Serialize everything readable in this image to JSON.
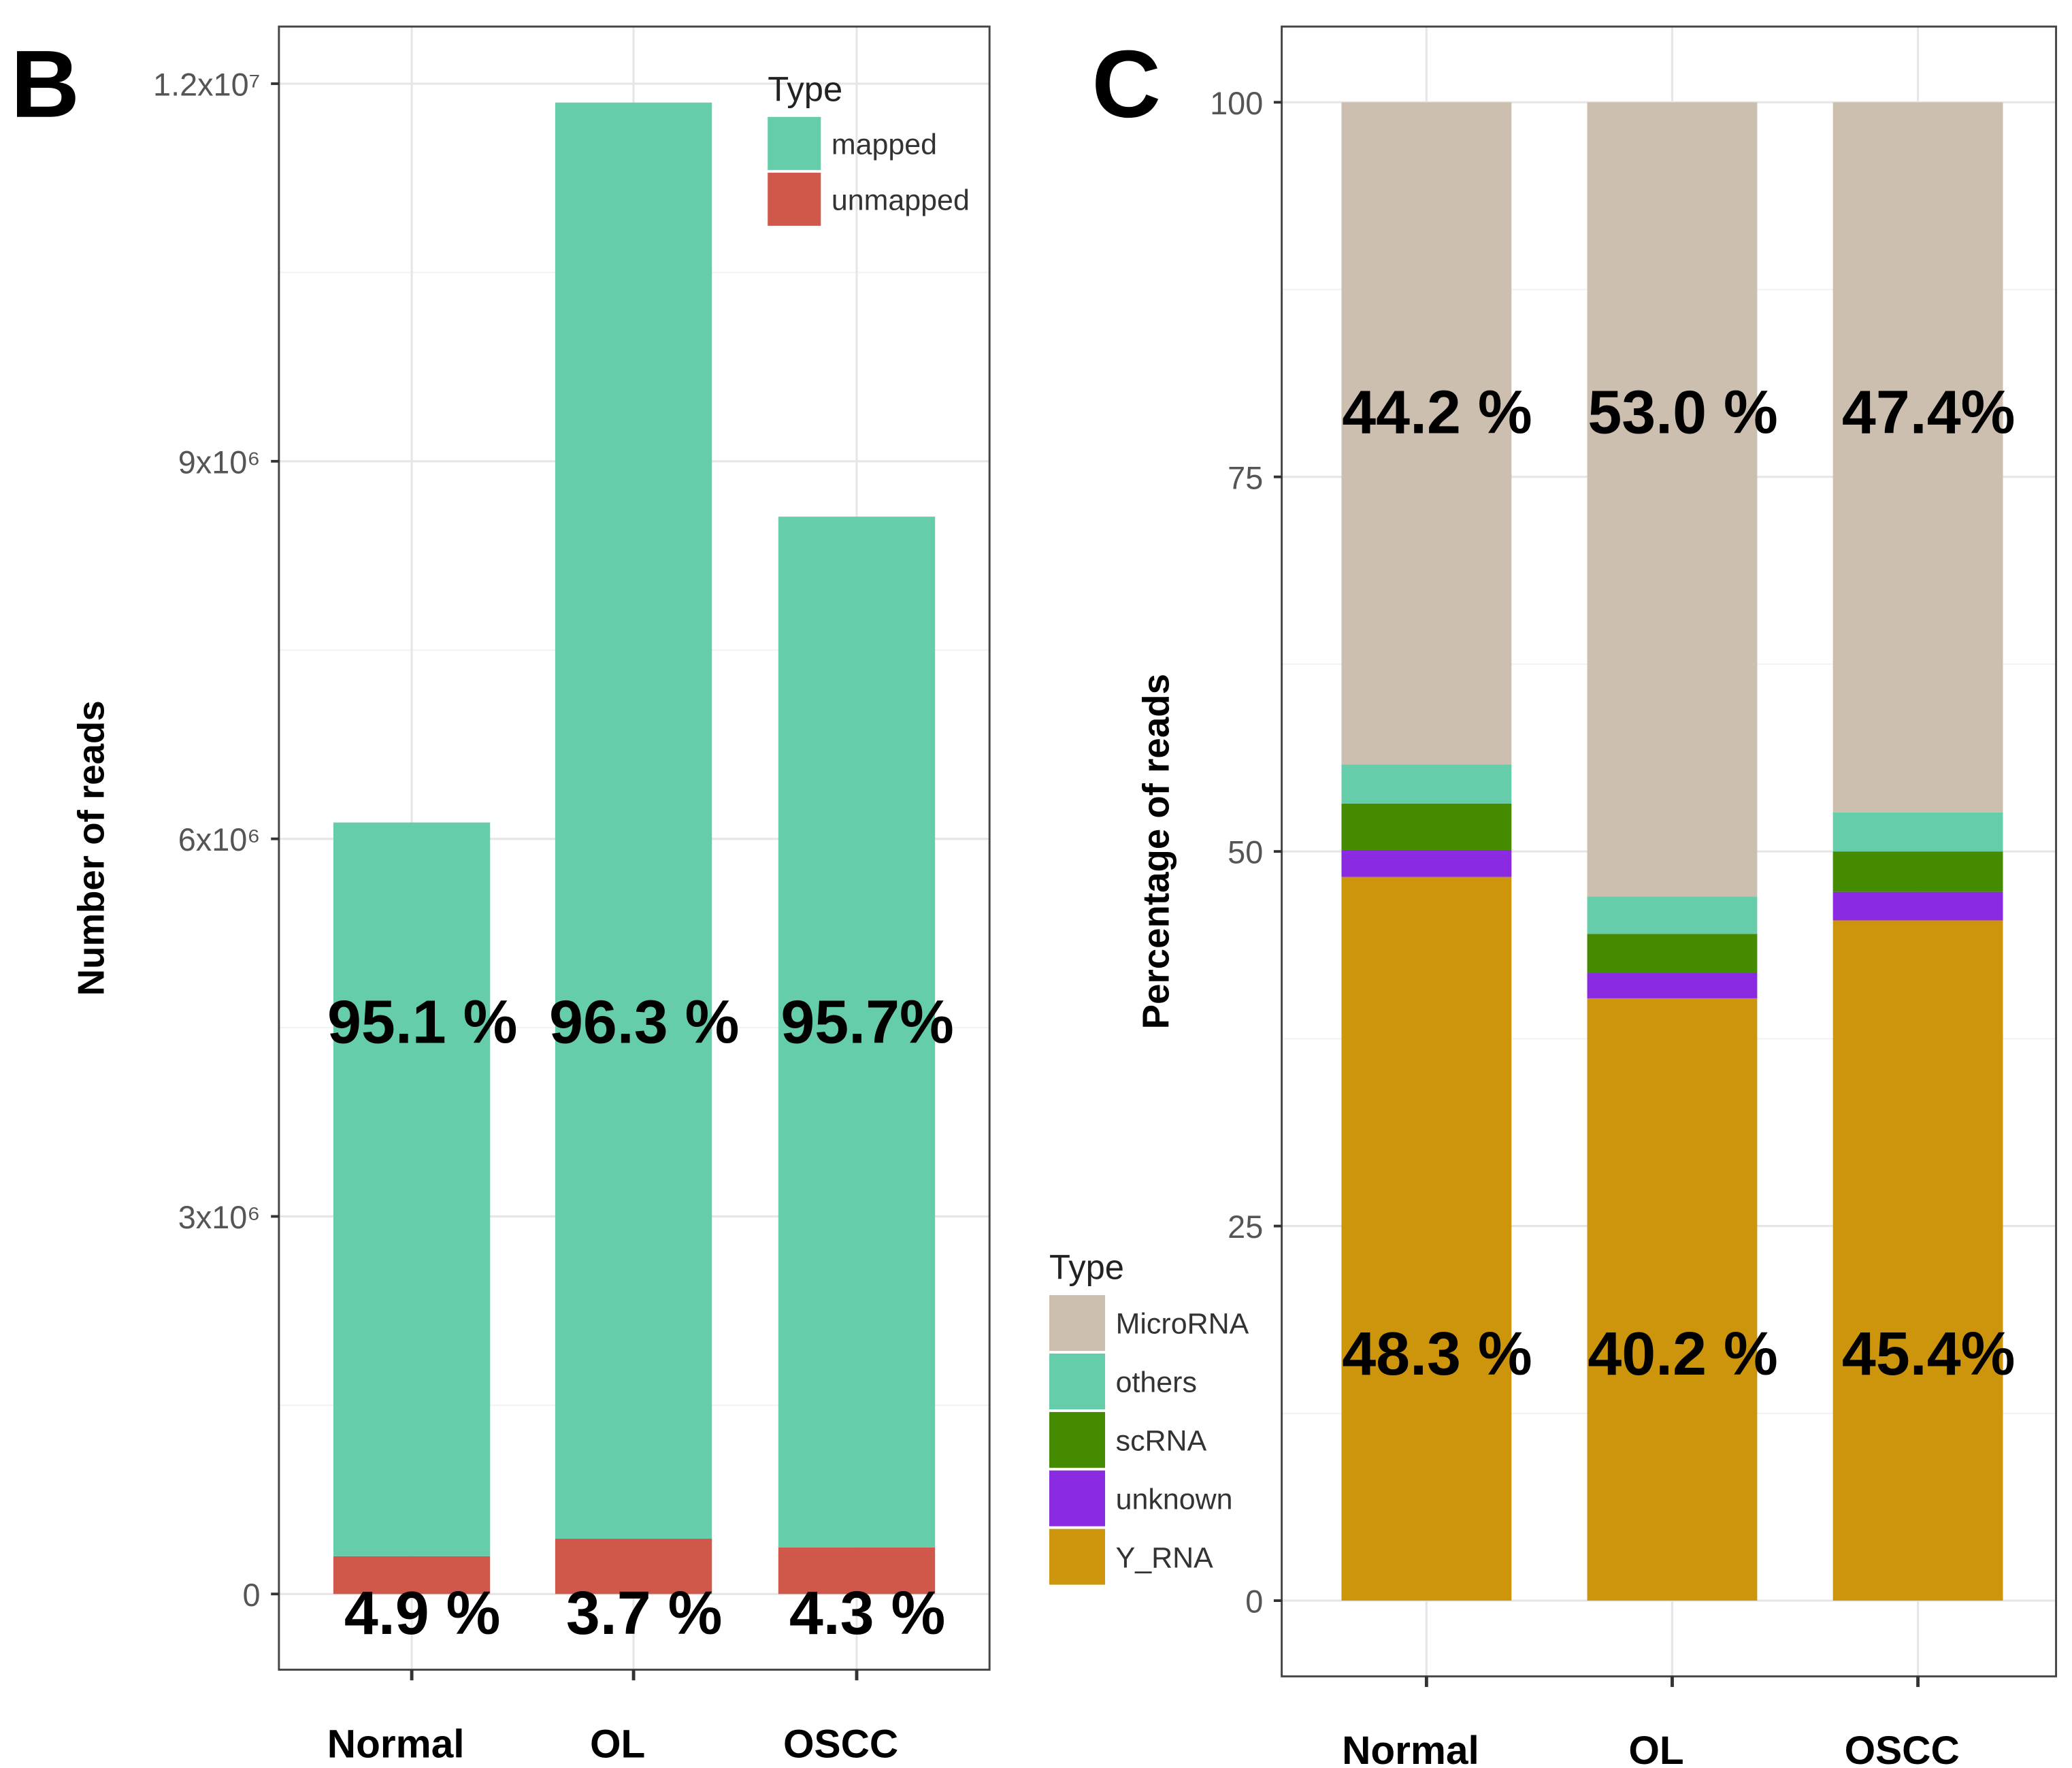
{
  "chart_data": [
    {
      "panel": "B",
      "type": "bar",
      "stacked": true,
      "ylabel": "Number of reads",
      "xlabel": "",
      "categories": [
        "Normal",
        "OL",
        "OSCC"
      ],
      "ylim": [
        -350000,
        12500000
      ],
      "yticks": [
        0,
        3000000,
        6000000,
        9000000,
        12000000
      ],
      "ytick_labels": [
        "0",
        "3x10⁶",
        "6x10⁶",
        "9x10⁶",
        "1.2x10⁷"
      ],
      "grid": true,
      "legend": {
        "title": "Type",
        "placement": "top-right"
      },
      "series": [
        {
          "name": "unmapped",
          "color": "#D0584A",
          "values": [
            300000,
            440000,
            370000
          ],
          "labels": [
            "4.9 %",
            "3.7 %",
            "4.3 %"
          ]
        },
        {
          "name": "mapped",
          "color": "#66CDAA",
          "values": [
            5830000,
            11410000,
            8190000
          ],
          "labels": [
            "95.1 %",
            "96.3 %",
            "95.7%"
          ]
        }
      ]
    },
    {
      "panel": "C",
      "type": "bar",
      "stacked": true,
      "ylabel": "Percentage of reads",
      "xlabel": "",
      "categories": [
        "Normal",
        "OL",
        "OSCC"
      ],
      "ylim": [
        -5,
        105
      ],
      "yticks": [
        0,
        25,
        50,
        75,
        100
      ],
      "ytick_labels": [
        "0",
        "25",
        "50",
        "75",
        "100"
      ],
      "grid": true,
      "legend": {
        "title": "Type",
        "placement": "bottom-left"
      },
      "series": [
        {
          "name": "Y_RNA",
          "color": "#CD950C",
          "values": [
            48.3,
            40.2,
            45.4
          ],
          "labels": [
            "48.3 %",
            "40.2 %",
            "45.4%"
          ]
        },
        {
          "name": "unknown",
          "color": "#8A2BE2",
          "values": [
            1.8,
            1.7,
            1.9
          ]
        },
        {
          "name": "scRNA",
          "color": "#458B00",
          "values": [
            3.1,
            2.6,
            2.7
          ]
        },
        {
          "name": "others",
          "color": "#66CDAA",
          "values": [
            2.6,
            2.5,
            2.6
          ]
        },
        {
          "name": "MicroRNA",
          "color": "#CDBFB0",
          "values": [
            44.2,
            53.0,
            47.4
          ],
          "labels": [
            "44.2 %",
            "53.0 %",
            "47.4%"
          ]
        }
      ],
      "legend_order": [
        "MicroRNA",
        "others",
        "scRNA",
        "unknown",
        "Y_RNA"
      ]
    }
  ]
}
